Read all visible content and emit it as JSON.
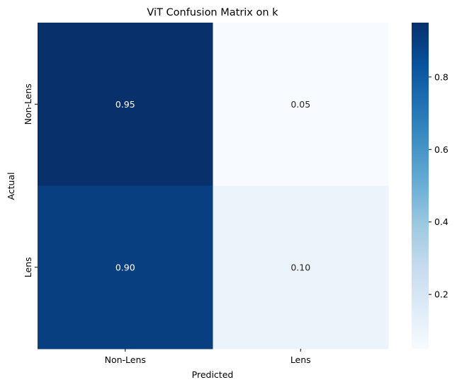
{
  "chart_data": {
    "type": "heatmap",
    "title": "ViT Confusion Matrix on k",
    "xlabel": "Predicted",
    "ylabel": "Actual",
    "x_categories": [
      "Non-Lens",
      "Lens"
    ],
    "y_categories": [
      "Non-Lens",
      "Lens"
    ],
    "values": [
      [
        0.95,
        0.05
      ],
      [
        0.9,
        0.1
      ]
    ],
    "annotations": [
      [
        "0.95",
        "0.05"
      ],
      [
        "0.90",
        "0.10"
      ]
    ],
    "colormap": "Blues",
    "colorbar": {
      "range": [
        0.05,
        0.95
      ],
      "ticks": [
        0.2,
        0.4,
        0.6,
        0.8
      ],
      "tick_labels": [
        "0.2",
        "0.4",
        "0.6",
        "0.8"
      ]
    },
    "grid": false
  }
}
